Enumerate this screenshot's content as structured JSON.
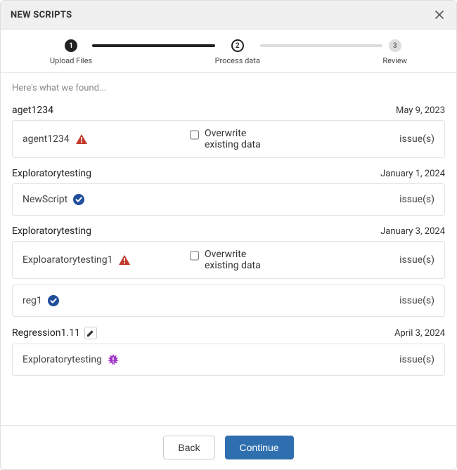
{
  "modal": {
    "title": "NEW SCRIPTS"
  },
  "stepper": {
    "steps": [
      {
        "num": "1",
        "label": "Upload Files",
        "state": "done"
      },
      {
        "num": "2",
        "label": "Process data",
        "state": "active"
      },
      {
        "num": "3",
        "label": "Review",
        "state": "future"
      }
    ]
  },
  "intro": "Here's what we found...",
  "issues_label": "issue(s)",
  "overwrite_label": "Overwrite existing data",
  "groups": [
    {
      "name": "aget1234",
      "date": "May 9, 2023",
      "editable": false,
      "scripts": [
        {
          "name": "agent1234",
          "status": "warning",
          "overwrite_visible": true
        }
      ]
    },
    {
      "name": "Exploratorytesting",
      "date": "January 1, 2024",
      "editable": false,
      "scripts": [
        {
          "name": "NewScript",
          "status": "ok",
          "overwrite_visible": false
        }
      ]
    },
    {
      "name": "Exploratorytesting",
      "date": "January 3, 2024",
      "editable": false,
      "scripts": [
        {
          "name": "Exploaratorytesting1",
          "status": "warning",
          "overwrite_visible": true
        },
        {
          "name": "reg1",
          "status": "ok",
          "overwrite_visible": false
        }
      ]
    },
    {
      "name": "Regression1.11",
      "date": "April 3, 2024",
      "editable": true,
      "scripts": [
        {
          "name": "Exploratorytesting",
          "status": "special",
          "overwrite_visible": false
        }
      ]
    }
  ],
  "footer": {
    "back": "Back",
    "continue": "Continue"
  },
  "colors": {
    "warning": "#c0392b",
    "ok_bg": "#1f4e9c",
    "special": "#a032c8",
    "step_done": "#222222",
    "step_future": "#dddddd",
    "primary_btn": "#2f6fb0"
  }
}
